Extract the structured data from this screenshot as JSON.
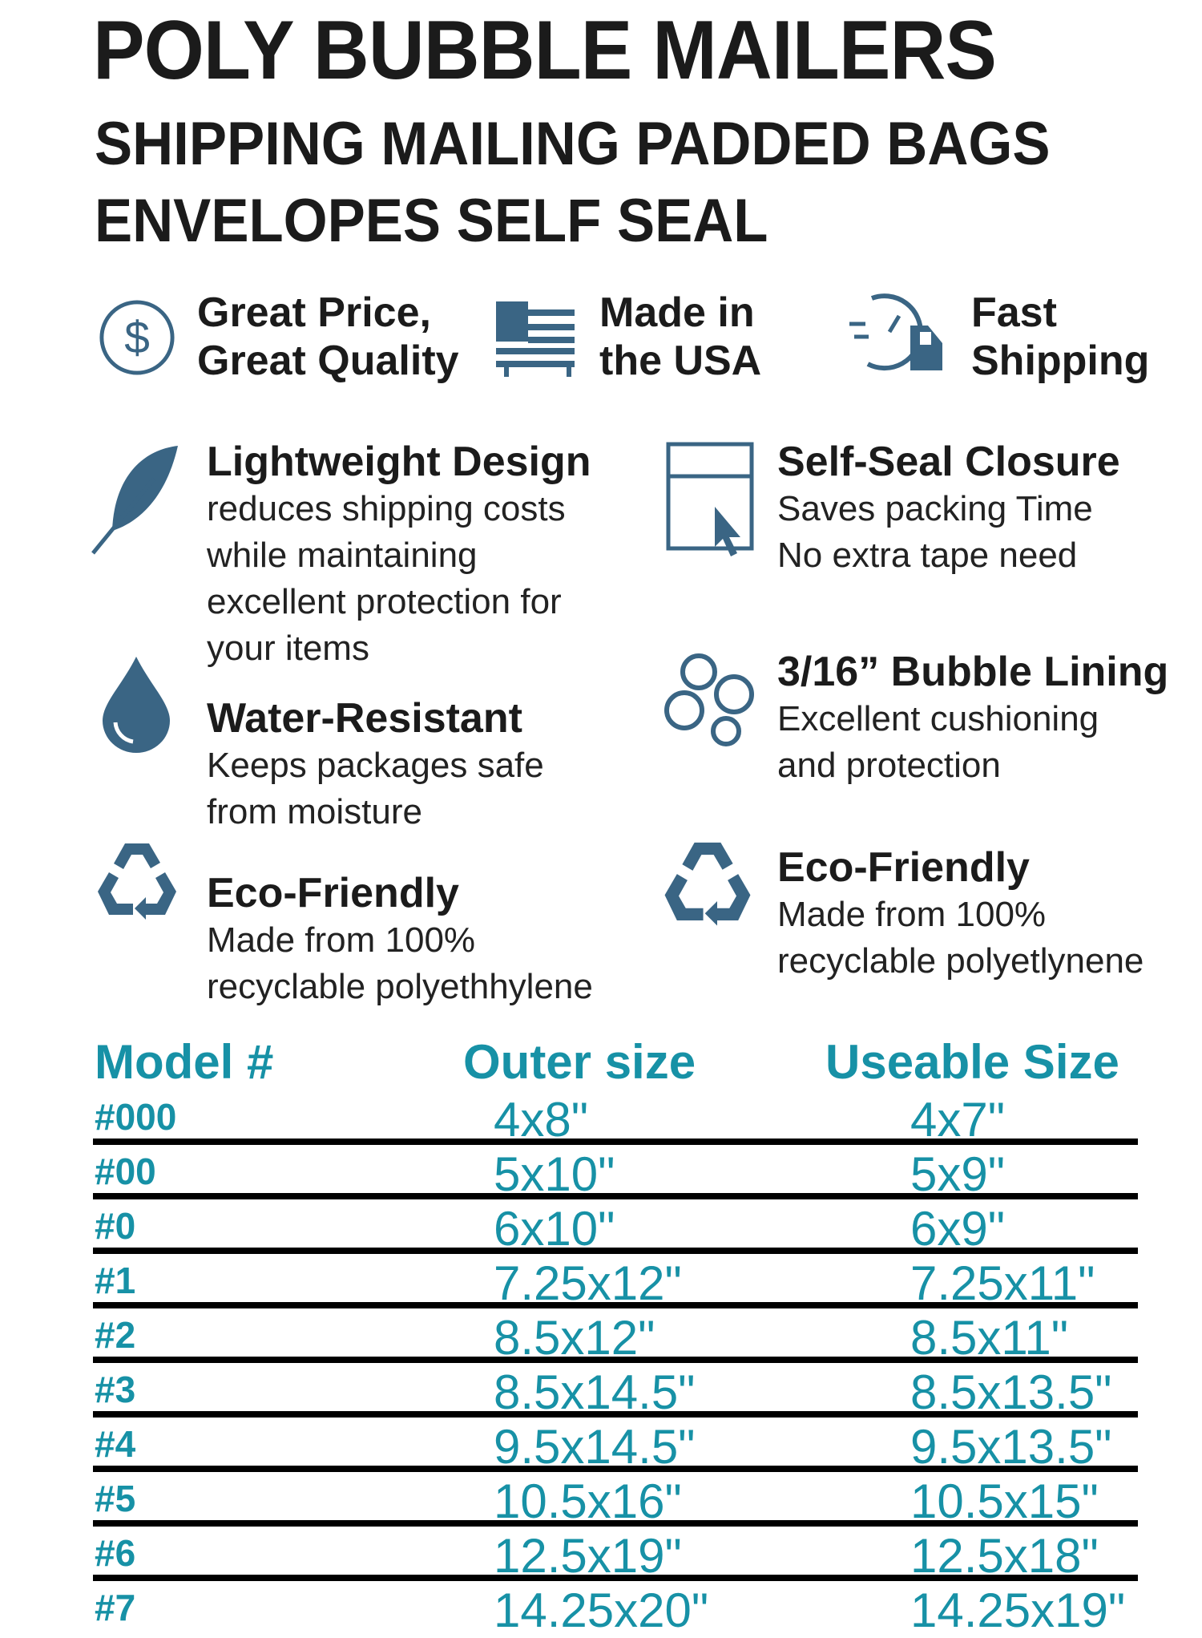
{
  "title": {
    "line1": "POLY BUBBLE MAILERS",
    "line2": "SHIPPING MAILING PADDED BAGS",
    "line3": "ENVELOPES SELF SEAL"
  },
  "highlights": [
    {
      "icon": "dollar-icon",
      "line1": "Great Price,",
      "line2": "Great Quality"
    },
    {
      "icon": "flag-icon",
      "line1": "Made in",
      "line2": "the USA"
    },
    {
      "icon": "fast-truck-icon",
      "line1": "Fast",
      "line2": "Shipping"
    }
  ],
  "features": {
    "lightweight": {
      "icon": "feather-icon",
      "heading": "Lightweight Design",
      "lines": [
        "reduces shipping costs",
        "while maintaining",
        "excellent protection for",
        "your items"
      ]
    },
    "self_seal": {
      "icon": "self-seal-icon",
      "heading": "Self-Seal Closure",
      "lines": [
        "Saves packing Time",
        "No extra tape need"
      ]
    },
    "water": {
      "icon": "water-drop-icon",
      "heading": "Water-Resistant",
      "lines": [
        "Keeps packages safe",
        "from  moisture"
      ]
    },
    "bubble": {
      "icon": "bubbles-icon",
      "heading": "3/16” Bubble Lining",
      "lines": [
        "Excellent cushioning",
        "and protection"
      ]
    },
    "eco_left": {
      "icon": "recycle-icon",
      "heading": "Eco-Friendly",
      "lines": [
        "Made from 100%",
        "recyclable polyethhylene"
      ]
    },
    "eco_right": {
      "icon": "recycle-icon",
      "heading": "Eco-Friendly",
      "lines": [
        "Made from 100%",
        "recyclable polyetlynene"
      ]
    }
  },
  "table": {
    "headers": [
      "Model #",
      "Outer size",
      "Useable Size"
    ],
    "rows": [
      [
        "#000",
        "4x8\"",
        "4x7\""
      ],
      [
        "#00",
        "5x10\"",
        "5x9\""
      ],
      [
        "#0",
        "6x10\"",
        "6x9\""
      ],
      [
        "#1",
        "7.25x12\"",
        "7.25x11\""
      ],
      [
        "#2",
        "8.5x12\"",
        "8.5x11\""
      ],
      [
        "#3",
        "8.5x14.5\"",
        "8.5x13.5\""
      ],
      [
        "#4",
        "9.5x14.5\"",
        "9.5x13.5\""
      ],
      [
        "#5",
        "10.5x16\"",
        "10.5x15\""
      ],
      [
        "#6",
        "12.5x19\"",
        "12.5x18\""
      ],
      [
        "#7",
        "14.25x20\"",
        "14.25x19\""
      ]
    ]
  },
  "colors": {
    "accent": "#1791a6",
    "icon": "#3a6584",
    "text": "#1b1b1b"
  }
}
